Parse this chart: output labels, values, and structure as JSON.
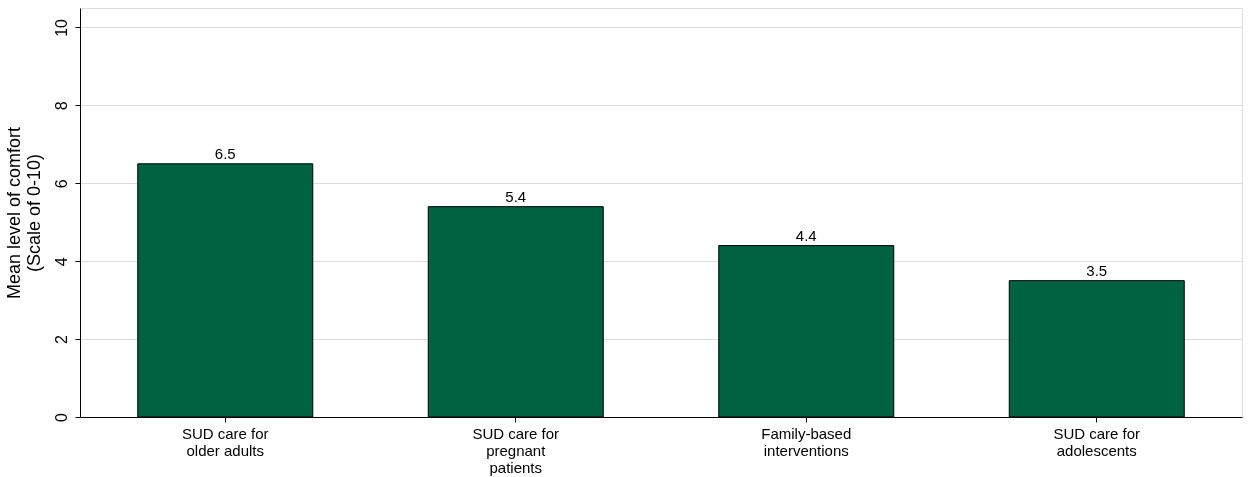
{
  "chart_data": {
    "type": "bar",
    "ylabel": "Mean level of comfort\n(Scale of 0-10)",
    "categories": [
      "SUD care for older adults",
      "SUD care for pregnant patients",
      "Family-based interventions",
      "SUD care for adolescents"
    ],
    "values": [
      6.5,
      5.4,
      4.4,
      3.5
    ],
    "color": "#006241",
    "ylim": [
      0,
      10.5
    ],
    "yticks": [
      0,
      2,
      4,
      6,
      8,
      10
    ],
    "grid": "y",
    "data_labels": true
  }
}
